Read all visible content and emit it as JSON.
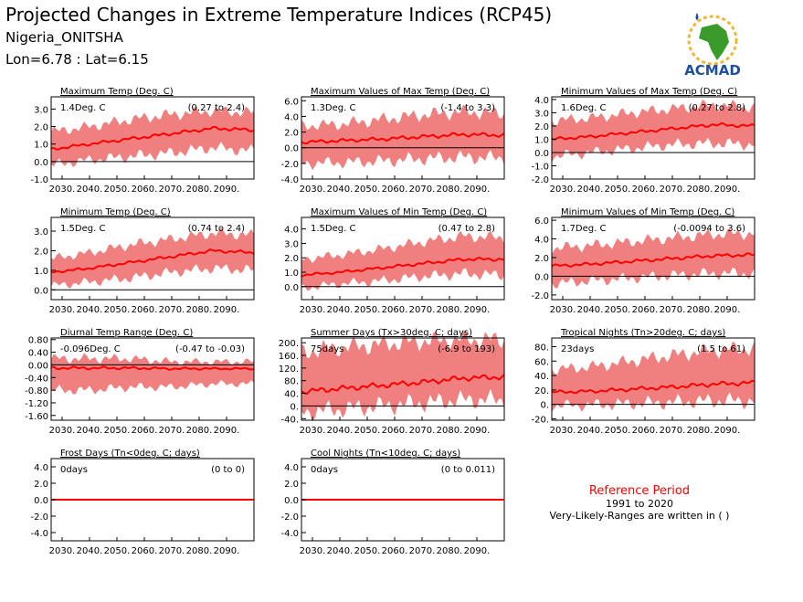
{
  "header": {
    "title": "Projected Changes in Extreme Temperature Indices (RCP45)",
    "location": "Nigeria_ONITSHA",
    "coords": "Lon=6.78 : Lat=6.15",
    "logo_text": "ACMAD"
  },
  "reference": {
    "label": "Reference Period",
    "years": "1991 to 2020",
    "note": "Very-Likely-Ranges are written in ( )"
  },
  "colors": {
    "band": "#f08080",
    "line": "#ff0000",
    "zero": "#000000",
    "logo_blue": "#1e4fa0",
    "logo_green": "#3a9a2a",
    "logo_gold": "#f2b632"
  },
  "chart_data": [
    {
      "type": "area",
      "title": "Maximum Temp (Deg. C)",
      "mean_text": "1.4Deg. C",
      "range_text": "(0.27 to 2.4)",
      "x_ticks": [
        "2030.",
        "2040.",
        "2050.",
        "2060.",
        "2070.",
        "2080.",
        "2090."
      ],
      "x_range": [
        2026,
        2100
      ],
      "ylim": [
        -1.0,
        3.7
      ],
      "y_ticks": [
        "-1.0",
        "0.0",
        "1.0",
        "2.0",
        "3.0"
      ],
      "x": [
        2026,
        2040,
        2055,
        2070,
        2085,
        2100
      ],
      "mean": [
        0.7,
        1.0,
        1.3,
        1.6,
        1.9,
        1.8
      ],
      "lower": [
        -0.2,
        0.1,
        0.3,
        0.5,
        0.8,
        0.6
      ],
      "upper": [
        1.7,
        2.0,
        2.4,
        2.7,
        2.9,
        2.8
      ]
    },
    {
      "type": "area",
      "title": "Maximum Values of Max Temp (Deg. C)",
      "mean_text": "1.3Deg. C",
      "range_text": "(-1.4 to 3.3)",
      "x_ticks": [
        "2030.",
        "2040.",
        "2050.",
        "2060.",
        "2070.",
        "2080.",
        "2090."
      ],
      "x_range": [
        2026,
        2100
      ],
      "ylim": [
        -4.0,
        6.5
      ],
      "y_ticks": [
        "-4.0",
        "-2.0",
        "0.0",
        "2.0",
        "4.0",
        "6.0"
      ],
      "x": [
        2026,
        2040,
        2055,
        2070,
        2085,
        2100
      ],
      "mean": [
        0.7,
        0.9,
        1.1,
        1.4,
        1.7,
        1.6
      ],
      "lower": [
        -2.0,
        -1.9,
        -1.7,
        -1.4,
        -1.2,
        -1.3
      ],
      "upper": [
        2.8,
        3.0,
        3.6,
        4.2,
        4.6,
        4.4
      ]
    },
    {
      "type": "area",
      "title": "Minimum Values of Max Temp (Deg. C)",
      "mean_text": "1.6Deg. C",
      "range_text": "(0.27 to 2.8)",
      "x_ticks": [
        "2030.",
        "2040.",
        "2050.",
        "2060.",
        "2070.",
        "2080.",
        "2090."
      ],
      "x_range": [
        2026,
        2100
      ],
      "ylim": [
        -2.0,
        4.2
      ],
      "y_ticks": [
        "-2.0",
        "-1.0",
        "0.0",
        "1.0",
        "2.0",
        "3.0",
        "4.0"
      ],
      "x": [
        2026,
        2040,
        2055,
        2070,
        2085,
        2100
      ],
      "mean": [
        1.0,
        1.2,
        1.5,
        1.8,
        2.1,
        2.0
      ],
      "lower": [
        -0.3,
        0.0,
        0.3,
        0.6,
        0.7,
        0.6
      ],
      "upper": [
        2.4,
        2.6,
        3.0,
        3.3,
        3.6,
        3.4
      ]
    },
    {
      "type": "area",
      "title": "Minimum Temp (Deg. C)",
      "mean_text": "1.5Deg. C",
      "range_text": "(0.74 to 2.4)",
      "x_ticks": [
        "2030.",
        "2040.",
        "2050.",
        "2060.",
        "2070.",
        "2080.",
        "2090."
      ],
      "x_range": [
        2026,
        2100
      ],
      "ylim": [
        -0.5,
        3.7
      ],
      "y_ticks": [
        "0.0",
        "1.0",
        "2.0",
        "3.0"
      ],
      "x": [
        2026,
        2040,
        2055,
        2070,
        2085,
        2100
      ],
      "mean": [
        0.9,
        1.1,
        1.4,
        1.7,
        2.0,
        1.9
      ],
      "lower": [
        0.2,
        0.4,
        0.6,
        0.9,
        1.1,
        1.0
      ],
      "upper": [
        1.6,
        1.9,
        2.3,
        2.6,
        2.9,
        2.8
      ]
    },
    {
      "type": "area",
      "title": "Maximum Values of Min Temp (Deg. C)",
      "mean_text": "1.5Deg. C",
      "range_text": "(0.47 to 2.8)",
      "x_ticks": [
        "2030.",
        "2040.",
        "2050.",
        "2060.",
        "2070.",
        "2080.",
        "2090."
      ],
      "x_range": [
        2026,
        2100
      ],
      "ylim": [
        -0.9,
        4.8
      ],
      "y_ticks": [
        "0.0",
        "1.0",
        "2.0",
        "3.0",
        "4.0"
      ],
      "x": [
        2026,
        2040,
        2055,
        2070,
        2085,
        2100
      ],
      "mean": [
        0.8,
        1.0,
        1.3,
        1.6,
        1.9,
        1.9
      ],
      "lower": [
        -0.1,
        0.2,
        0.4,
        0.7,
        0.9,
        0.8
      ],
      "upper": [
        1.9,
        2.2,
        2.6,
        3.1,
        3.5,
        3.4
      ]
    },
    {
      "type": "area",
      "title": "Minimum Values of Min Temp (Deg. C)",
      "mean_text": "1.7Deg. C",
      "range_text": "(-0.0094 to 3.6)",
      "x_ticks": [
        "2030.",
        "2040.",
        "2050.",
        "2060.",
        "2070.",
        "2080.",
        "2090."
      ],
      "x_range": [
        2026,
        2100
      ],
      "ylim": [
        -2.5,
        6.3
      ],
      "y_ticks": [
        "-2.0",
        "0.0",
        "2.0",
        "4.0",
        "6.0"
      ],
      "x": [
        2026,
        2040,
        2055,
        2070,
        2085,
        2100
      ],
      "mean": [
        1.1,
        1.3,
        1.6,
        1.9,
        2.2,
        2.3
      ],
      "lower": [
        -0.8,
        -0.5,
        -0.2,
        0.1,
        0.3,
        0.3
      ],
      "upper": [
        3.0,
        3.3,
        3.7,
        4.1,
        4.5,
        4.6
      ]
    },
    {
      "type": "area",
      "title": "Diurnal Temp Range (Deg. C)",
      "mean_text": "-0.096Deg. C",
      "range_text": "(-0.47 to -0.03)",
      "x_ticks": [
        "2030.",
        "2040.",
        "2050.",
        "2060.",
        "2070.",
        "2080.",
        "2090."
      ],
      "x_range": [
        2026,
        2100
      ],
      "ylim": [
        -1.75,
        0.85
      ],
      "y_ticks": [
        "-1.60",
        "-1.20",
        "-0.80",
        "-0.40",
        "0.00",
        "0.40",
        "0.80"
      ],
      "x": [
        2026,
        2040,
        2055,
        2070,
        2085,
        2100
      ],
      "mean": [
        -0.1,
        -0.1,
        -0.1,
        -0.12,
        -0.12,
        -0.12
      ],
      "lower": [
        -0.8,
        -0.8,
        -0.7,
        -0.7,
        -0.6,
        -0.6
      ],
      "upper": [
        0.2,
        0.2,
        0.2,
        0.1,
        0.1,
        0.1
      ]
    },
    {
      "type": "area",
      "title": "Summer Days (Tx>30deg. C; days)",
      "mean_text": "75days",
      "range_text": "(-6.9 to 193)",
      "x_ticks": [
        "2030.",
        "2040.",
        "2050.",
        "2060.",
        "2070.",
        "2080.",
        "2090."
      ],
      "x_range": [
        2026,
        2100
      ],
      "ylim": [
        -45,
        215
      ],
      "y_ticks": [
        "-40.",
        "0.",
        "40.",
        "80.",
        "120.",
        "160.",
        "200."
      ],
      "x": [
        2026,
        2040,
        2055,
        2070,
        2085,
        2100
      ],
      "mean": [
        45,
        55,
        65,
        75,
        88,
        92
      ],
      "lower": [
        -20,
        -10,
        0,
        10,
        20,
        20
      ],
      "upper": [
        170,
        185,
        195,
        205,
        210,
        210
      ]
    },
    {
      "type": "area",
      "title": "Tropical Nights (Tn>20deg. C; days)",
      "mean_text": "23days",
      "range_text": "(1.5 to 61)",
      "x_ticks": [
        "2030.",
        "2040.",
        "2050.",
        "2060.",
        "2070.",
        "2080.",
        "2090."
      ],
      "x_range": [
        2026,
        2100
      ],
      "ylim": [
        -22,
        92
      ],
      "y_ticks": [
        "-20.",
        "0.",
        "20.",
        "40.",
        "60.",
        "80."
      ],
      "x": [
        2026,
        2040,
        2055,
        2070,
        2085,
        2100
      ],
      "mean": [
        17,
        18,
        21,
        24,
        28,
        30
      ],
      "lower": [
        -2,
        -1,
        1,
        3,
        5,
        5
      ],
      "upper": [
        48,
        52,
        60,
        68,
        75,
        78
      ]
    },
    {
      "type": "area",
      "title": "Frost Days (Tn<0deg. C; days)",
      "mean_text": "0days",
      "range_text": "(0 to 0)",
      "x_ticks": [
        "2030.",
        "2040.",
        "2050.",
        "2060.",
        "2070.",
        "2080.",
        "2090."
      ],
      "x_range": [
        2026,
        2100
      ],
      "ylim": [
        -5.0,
        5.0
      ],
      "y_ticks": [
        "-4.0",
        "-2.0",
        "0.0",
        "2.0",
        "4.0"
      ],
      "x": [
        2026,
        2100
      ],
      "mean": [
        0,
        0
      ],
      "lower": [
        0,
        0
      ],
      "upper": [
        0,
        0
      ]
    },
    {
      "type": "area",
      "title": "Cool Nights (Tn<10deg. C; days)",
      "mean_text": "0days",
      "range_text": "(0 to 0.011)",
      "x_ticks": [
        "2030.",
        "2040.",
        "2050.",
        "2060.",
        "2070.",
        "2080.",
        "2090."
      ],
      "x_range": [
        2026,
        2100
      ],
      "ylim": [
        -5.0,
        5.0
      ],
      "y_ticks": [
        "-4.0",
        "-2.0",
        "0.0",
        "2.0",
        "4.0"
      ],
      "x": [
        2026,
        2100
      ],
      "mean": [
        0,
        0
      ],
      "lower": [
        0,
        0
      ],
      "upper": [
        0,
        0
      ]
    }
  ]
}
